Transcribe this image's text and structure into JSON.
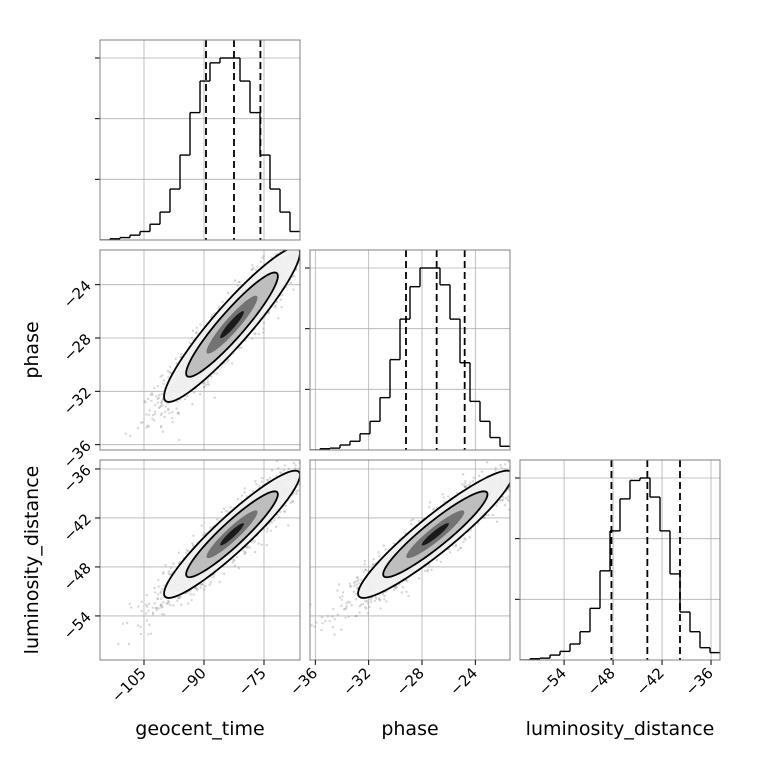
{
  "chart_data": {
    "type": "corner",
    "parameters": [
      {
        "name": "geocent_time",
        "label": "geocent_time",
        "range": [
          -116,
          -66
        ],
        "ticks": [
          -105,
          -90,
          -75
        ],
        "tick_labels": [
          "−105",
          "−90",
          "−75"
        ],
        "quantiles": [
          -89.5,
          -82.5,
          -75.9
        ]
      },
      {
        "name": "phase",
        "label": "phase",
        "range": [
          -36.4,
          -21.4
        ],
        "ticks": [
          -36,
          -32,
          -28,
          -24
        ],
        "tick_labels": [
          "−36",
          "−32",
          "−28",
          "−24"
        ],
        "quantiles": [
          -29.2,
          -26.9,
          -24.8
        ]
      },
      {
        "name": "luminosity_distance",
        "label": "luminosity_distance",
        "range": [
          -59.4,
          -34.9
        ],
        "ticks": [
          -54,
          -48,
          -42,
          -36
        ],
        "tick_labels": [
          "−54",
          "−48",
          "−42",
          "−36"
        ],
        "quantiles": [
          -48.2,
          -43.8,
          -39.8
        ]
      }
    ],
    "histograms": [
      {
        "parameter": "geocent_time",
        "bin_edges": [
          -116,
          -113.5,
          -111,
          -108.5,
          -106,
          -103.5,
          -101,
          -98.5,
          -96,
          -93.5,
          -91,
          -88.5,
          -86,
          -83.5,
          -81,
          -78.5,
          -76,
          -73.5,
          -71,
          -68.5,
          -66
        ],
        "counts": [
          0,
          2,
          4,
          8,
          14,
          26,
          46,
          84,
          140,
          210,
          262,
          292,
          300,
          300,
          262,
          210,
          140,
          84,
          46,
          14
        ]
      },
      {
        "parameter": "phase",
        "bin_edges": [
          -36.4,
          -35.65,
          -34.9,
          -34.15,
          -33.4,
          -32.65,
          -31.9,
          -31.15,
          -30.4,
          -29.65,
          -28.9,
          -28.15,
          -27.4,
          -26.65,
          -25.9,
          -25.15,
          -24.4,
          -23.65,
          -22.9,
          -22.15,
          -21.4
        ],
        "counts": [
          0,
          2,
          3,
          8,
          14,
          26,
          46,
          84,
          145,
          210,
          262,
          292,
          292,
          265,
          210,
          140,
          78,
          46,
          20,
          6
        ]
      },
      {
        "parameter": "luminosity_distance",
        "bin_edges": [
          -59.4,
          -58.175,
          -56.95,
          -55.725,
          -54.5,
          -53.275,
          -52.05,
          -50.825,
          -49.6,
          -48.375,
          -47.15,
          -45.925,
          -44.7,
          -43.475,
          -42.25,
          -41.025,
          -39.8,
          -38.575,
          -37.35,
          -36.125,
          -34.9
        ],
        "counts": [
          0,
          2,
          3,
          8,
          14,
          26,
          46,
          84,
          145,
          210,
          262,
          292,
          296,
          265,
          210,
          140,
          78,
          46,
          20,
          12
        ]
      }
    ],
    "pairs": [
      {
        "x": "geocent_time",
        "y": "phase",
        "mean": [
          -83.0,
          -27.0
        ],
        "std": [
          8.5,
          2.9
        ],
        "rho": 0.93,
        "n_samples": 1800
      },
      {
        "x": "geocent_time",
        "y": "luminosity_distance",
        "mean": [
          -83.0,
          -44.0
        ],
        "std": [
          8.5,
          3.9
        ],
        "rho": 0.93,
        "n_samples": 1800
      },
      {
        "x": "phase",
        "y": "luminosity_distance",
        "mean": [
          -27.0,
          -44.0
        ],
        "std": [
          2.9,
          3.9
        ],
        "rho": 0.93,
        "n_samples": 1800
      }
    ],
    "grid": true,
    "colors": {
      "line": "#000000",
      "samples": "#8a8a8a",
      "grid": "#b0b0b0",
      "spine": "#808080"
    }
  }
}
